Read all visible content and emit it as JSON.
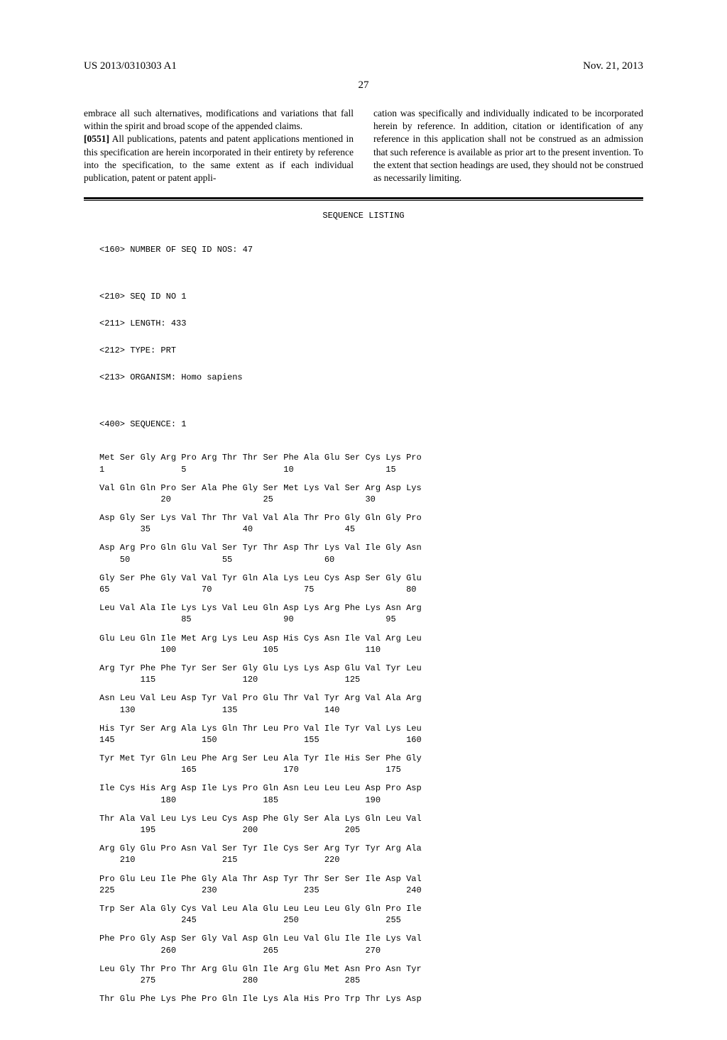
{
  "header": {
    "left": "US 2013/0310303 A1",
    "right": "Nov. 21, 2013"
  },
  "pageNumber": "27",
  "col1": {
    "para1": "embrace all such alternatives, modifications and variations that fall within the spirit and broad scope of the appended claims.",
    "para2num": "[0551]",
    "para2": "  All publications, patents and patent applications mentioned in this specification are herein incorporated in their entirety by reference into the specification, to the same extent as if each individual publication, patent or patent appli-"
  },
  "col2": {
    "para1": "cation was specifically and individually indicated to be incorporated herein by reference. In addition, citation or identification of any reference in this application shall not be construed as an admission that such reference is available as prior art to the present invention. To the extent that section headings are used, they should not be construed as necessarily limiting."
  },
  "seqTitle": "SEQUENCE LISTING",
  "meta": {
    "m1": "<160> NUMBER OF SEQ ID NOS: 47",
    "m2": "<210> SEQ ID NO 1",
    "m3": "<211> LENGTH: 433",
    "m4": "<212> TYPE: PRT",
    "m5": "<213> ORGANISM: Homo sapiens",
    "m6": "<400> SEQUENCE: 1"
  },
  "sequence": [
    {
      "aa": "Met Ser Gly Arg Pro Arg Thr Thr Ser Phe Ala Glu Ser Cys Lys Pro",
      "num": "1               5                   10                  15"
    },
    {
      "aa": "Val Gln Gln Pro Ser Ala Phe Gly Ser Met Lys Val Ser Arg Asp Lys",
      "num": "            20                  25                  30"
    },
    {
      "aa": "Asp Gly Ser Lys Val Thr Thr Val Val Ala Thr Pro Gly Gln Gly Pro",
      "num": "        35                  40                  45"
    },
    {
      "aa": "Asp Arg Pro Gln Glu Val Ser Tyr Thr Asp Thr Lys Val Ile Gly Asn",
      "num": "    50                  55                  60"
    },
    {
      "aa": "Gly Ser Phe Gly Val Val Tyr Gln Ala Lys Leu Cys Asp Ser Gly Glu",
      "num": "65                  70                  75                  80"
    },
    {
      "aa": "Leu Val Ala Ile Lys Lys Val Leu Gln Asp Lys Arg Phe Lys Asn Arg",
      "num": "                85                  90                  95"
    },
    {
      "aa": "Glu Leu Gln Ile Met Arg Lys Leu Asp His Cys Asn Ile Val Arg Leu",
      "num": "            100                 105                 110"
    },
    {
      "aa": "Arg Tyr Phe Phe Tyr Ser Ser Gly Glu Lys Lys Asp Glu Val Tyr Leu",
      "num": "        115                 120                 125"
    },
    {
      "aa": "Asn Leu Val Leu Asp Tyr Val Pro Glu Thr Val Tyr Arg Val Ala Arg",
      "num": "    130                 135                 140"
    },
    {
      "aa": "His Tyr Ser Arg Ala Lys Gln Thr Leu Pro Val Ile Tyr Val Lys Leu",
      "num": "145                 150                 155                 160"
    },
    {
      "aa": "Tyr Met Tyr Gln Leu Phe Arg Ser Leu Ala Tyr Ile His Ser Phe Gly",
      "num": "                165                 170                 175"
    },
    {
      "aa": "Ile Cys His Arg Asp Ile Lys Pro Gln Asn Leu Leu Leu Asp Pro Asp",
      "num": "            180                 185                 190"
    },
    {
      "aa": "Thr Ala Val Leu Lys Leu Cys Asp Phe Gly Ser Ala Lys Gln Leu Val",
      "num": "        195                 200                 205"
    },
    {
      "aa": "Arg Gly Glu Pro Asn Val Ser Tyr Ile Cys Ser Arg Tyr Tyr Arg Ala",
      "num": "    210                 215                 220"
    },
    {
      "aa": "Pro Glu Leu Ile Phe Gly Ala Thr Asp Tyr Thr Ser Ser Ile Asp Val",
      "num": "225                 230                 235                 240"
    },
    {
      "aa": "Trp Ser Ala Gly Cys Val Leu Ala Glu Leu Leu Leu Gly Gln Pro Ile",
      "num": "                245                 250                 255"
    },
    {
      "aa": "Phe Pro Gly Asp Ser Gly Val Asp Gln Leu Val Glu Ile Ile Lys Val",
      "num": "            260                 265                 270"
    },
    {
      "aa": "Leu Gly Thr Pro Thr Arg Glu Gln Ile Arg Glu Met Asn Pro Asn Tyr",
      "num": "        275                 280                 285"
    },
    {
      "aa": "Thr Glu Phe Lys Phe Pro Gln Ile Lys Ala His Pro Trp Thr Lys Asp",
      "num": ""
    }
  ]
}
